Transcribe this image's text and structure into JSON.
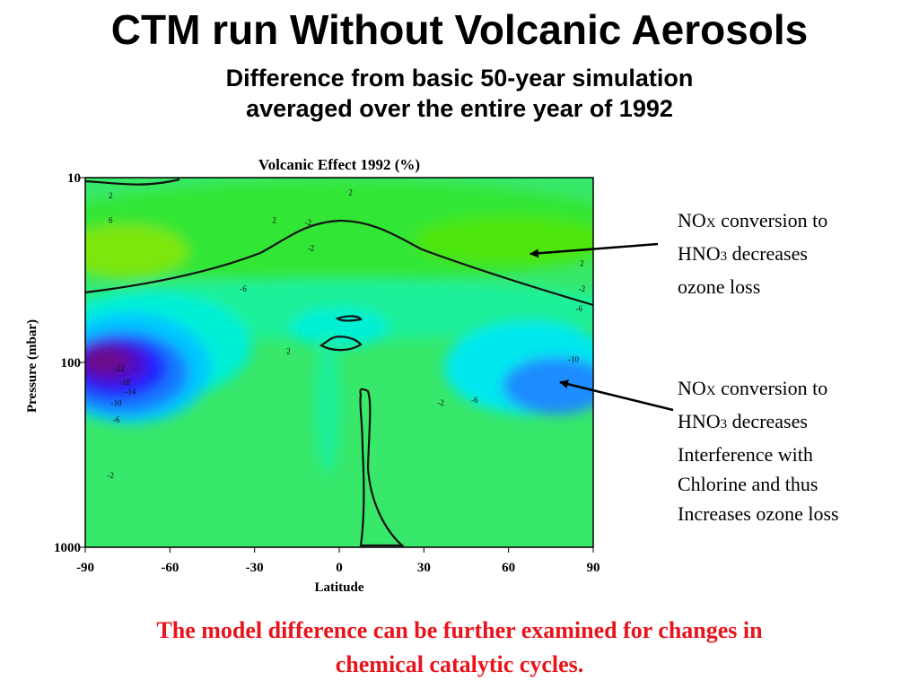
{
  "slide": {
    "title": "CTM run Without Volcanic Aerosols",
    "subtitle_line1": "Difference from basic 50-year simulation",
    "subtitle_line2": "averaged over the entire year of 1992",
    "footer_line1": "The model difference can be further examined for changes in",
    "footer_line2": "chemical catalytic cycles."
  },
  "annotations": {
    "top": {
      "line1_a": "NO",
      "line1_sub": "X",
      "line1_b": " conversion to",
      "line2_a": "HNO",
      "line2_sub": "3",
      "line2_b": " decreases",
      "line3": "ozone loss"
    },
    "bottom": {
      "line1_a": "NO",
      "line1_sub": "X",
      "line1_b": " conversion to",
      "line2_a": "HNO",
      "line2_sub": "3",
      "line2_b": " decreases",
      "line3": "Interference with",
      "line4": "Chlorine and thus",
      "line5": "Increases ozone loss"
    }
  },
  "chart_data": {
    "type": "heatmap",
    "title": "Volcanic Effect 1992 (%)",
    "xlabel": "Latitude",
    "ylabel": "Pressure (mbar)",
    "xlim": [
      -90,
      90
    ],
    "ylim": [
      1000,
      10
    ],
    "y_scale": "log",
    "x_ticks": [
      -90,
      -60,
      -30,
      0,
      30,
      60,
      90
    ],
    "x_tick_labels": [
      "-90",
      "-60",
      "-30",
      "0",
      "30",
      "60",
      "90"
    ],
    "y_ticks": [
      10,
      100,
      1000
    ],
    "y_tick_labels": [
      "10",
      "100",
      "1000"
    ],
    "contour_labels": [
      {
        "lat": -81,
        "p": 12.5,
        "value": "2"
      },
      {
        "lat": -81,
        "p": 17,
        "value": "6"
      },
      {
        "lat": -23,
        "p": 17,
        "value": "2"
      },
      {
        "lat": -11,
        "p": 17.5,
        "value": "-2"
      },
      {
        "lat": 4,
        "p": 12,
        "value": "2"
      },
      {
        "lat": -10,
        "p": 24,
        "value": "-2"
      },
      {
        "lat": -34,
        "p": 40,
        "value": "-6"
      },
      {
        "lat": 86,
        "p": 29,
        "value": "2"
      },
      {
        "lat": 86,
        "p": 40,
        "value": "-2"
      },
      {
        "lat": 85,
        "p": 51,
        "value": "-6"
      },
      {
        "lat": 83,
        "p": 96,
        "value": "-10"
      },
      {
        "lat": -78,
        "p": 108,
        "value": "-22"
      },
      {
        "lat": -76,
        "p": 128,
        "value": "-18"
      },
      {
        "lat": -74,
        "p": 144,
        "value": "-14"
      },
      {
        "lat": -79,
        "p": 166,
        "value": "-10"
      },
      {
        "lat": -79,
        "p": 205,
        "value": "-6"
      },
      {
        "lat": -81,
        "p": 410,
        "value": "-2"
      },
      {
        "lat": -18,
        "p": 87,
        "value": "2"
      },
      {
        "lat": 36,
        "p": 165,
        "value": "-2"
      },
      {
        "lat": 48,
        "p": 160,
        "value": "-6"
      }
    ]
  },
  "colors": {
    "footer": "#e8141c",
    "background": "#38e86a"
  }
}
